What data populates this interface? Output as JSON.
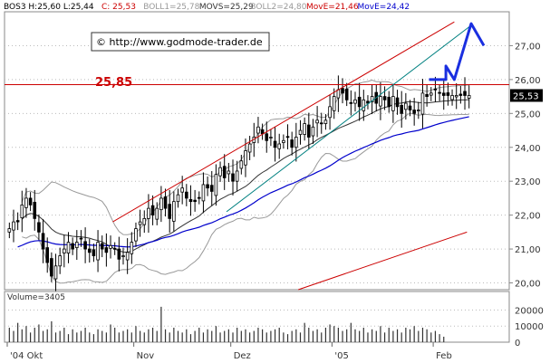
{
  "header": {
    "items": [
      {
        "text": "BOS3 H:25,60 L:25,44",
        "color": "#000000"
      },
      {
        "text": "C: 25,53",
        "color": "#cc0000"
      },
      {
        "text": "BOLL1=25,78",
        "color": "#999999"
      },
      {
        "text": "MOVS=25,29",
        "color": "#333333"
      },
      {
        "text": "BOLL2=24,80",
        "color": "#999999"
      },
      {
        "text": "MovE=21,46",
        "color": "#cc0000"
      },
      {
        "text": "MovE=24,42",
        "color": "#0000cc"
      }
    ]
  },
  "watermark": "© http://www.godmode-trader.de",
  "level_label": "25,85",
  "last_price_label": "25,53",
  "volume_label": "Volume=3405",
  "colors": {
    "candles": "#000000",
    "boll": "#999999",
    "movs": "#333333",
    "move_red": "#cc0000",
    "move_blue": "#0000cc",
    "channel": "#cc0000",
    "trendline": "#008080",
    "projection": "#1a2fe0",
    "level": "#cc0000"
  },
  "chart_data": {
    "type": "candlestick",
    "ylim": [
      19.8,
      28.0
    ],
    "y_ticks": [
      "20,00",
      "21,00",
      "22,00",
      "23,00",
      "24,00",
      "25,00",
      "26,00",
      "27,00"
    ],
    "y_tick_values": [
      20,
      21,
      22,
      23,
      24,
      25,
      26,
      27
    ],
    "x_labels": [
      "'04 Okt",
      "Nov",
      "Dez",
      "'05",
      "Feb"
    ],
    "x_label_index": [
      0,
      30,
      53,
      77,
      101
    ],
    "bars": 110,
    "close": [
      21.6,
      21.8,
      21.8,
      22.3,
      22.5,
      22.3,
      21.9,
      21.5,
      21.0,
      20.6,
      20.2,
      20.5,
      20.8,
      21.0,
      21.2,
      21.0,
      21.2,
      21.3,
      21.0,
      20.9,
      20.8,
      21.2,
      21.0,
      20.9,
      21.1,
      21.0,
      20.7,
      20.8,
      20.9,
      21.2,
      21.6,
      21.8,
      21.9,
      22.2,
      22.0,
      22.2,
      22.5,
      22.2,
      21.9,
      22.4,
      22.6,
      22.8,
      22.5,
      22.4,
      22.4,
      22.5,
      22.9,
      22.8,
      22.7,
      23.2,
      23.4,
      23.1,
      23.3,
      23.0,
      23.3,
      23.6,
      23.9,
      24.1,
      24.3,
      24.6,
      24.4,
      24.2,
      24.3,
      24.0,
      24.1,
      24.2,
      24.3,
      24.0,
      24.3,
      24.5,
      24.7,
      24.3,
      24.6,
      24.8,
      24.7,
      24.8,
      25.2,
      25.5,
      25.7,
      25.6,
      25.4,
      25.3,
      25.4,
      25.2,
      25.4,
      25.3,
      25.5,
      25.3,
      25.5,
      25.4,
      25.2,
      25.5,
      25.2,
      25.0,
      25.3,
      25.1,
      25.0,
      25.1,
      25.6,
      25.5,
      25.6,
      25.7,
      25.6,
      25.53
    ],
    "volume": [
      9000,
      7000,
      12000,
      8000,
      10000,
      6000,
      9000,
      11000,
      7000,
      8000,
      13000,
      6000,
      7000,
      9000,
      5000,
      8000,
      6000,
      7000,
      9000,
      6000,
      5000,
      8000,
      7000,
      6000,
      11000,
      9000,
      6000,
      7000,
      8000,
      6000,
      10000,
      7000,
      6000,
      8000,
      9000,
      7000,
      22000,
      8000,
      6000,
      9000,
      7000,
      6000,
      8000,
      5000,
      7000,
      9000,
      6000,
      8000,
      7000,
      10000,
      6000,
      7000,
      8000,
      6000,
      9000,
      7000,
      8000,
      6000,
      7000,
      9000,
      8000,
      6000,
      7000,
      8000,
      9000,
      6000,
      5000,
      7000,
      8000,
      6000,
      12000,
      9000,
      7000,
      8000,
      6000,
      9000,
      11000,
      10000,
      9000,
      7000,
      8000,
      12000,
      8000,
      7000,
      9000,
      6000,
      8000,
      7000,
      10000,
      6000,
      9000,
      7000,
      8000,
      6000,
      9000,
      8000,
      10000,
      7000,
      9000,
      8000,
      6000,
      7000,
      5000,
      3405
    ],
    "vol_ticks": [
      "0",
      "10000",
      "20000"
    ],
    "vol_tick_values": [
      0,
      10000,
      20000
    ],
    "annotations": {
      "horizontal_level": 25.85,
      "channel_upper": [
        [
          25,
          21.8
        ],
        [
          106,
          27.7
        ]
      ],
      "channel_lower": [
        [
          69,
          19.8
        ],
        [
          109,
          21.5
        ]
      ],
      "trendline": [
        [
          52,
          22.1
        ],
        [
          110,
          27.6
        ]
      ],
      "projection": [
        [
          100,
          26.0
        ],
        [
          104,
          26.0
        ],
        [
          104,
          26.4
        ],
        [
          106,
          26.0
        ],
        [
          110,
          27.65
        ],
        [
          113,
          27.0
        ]
      ]
    }
  }
}
